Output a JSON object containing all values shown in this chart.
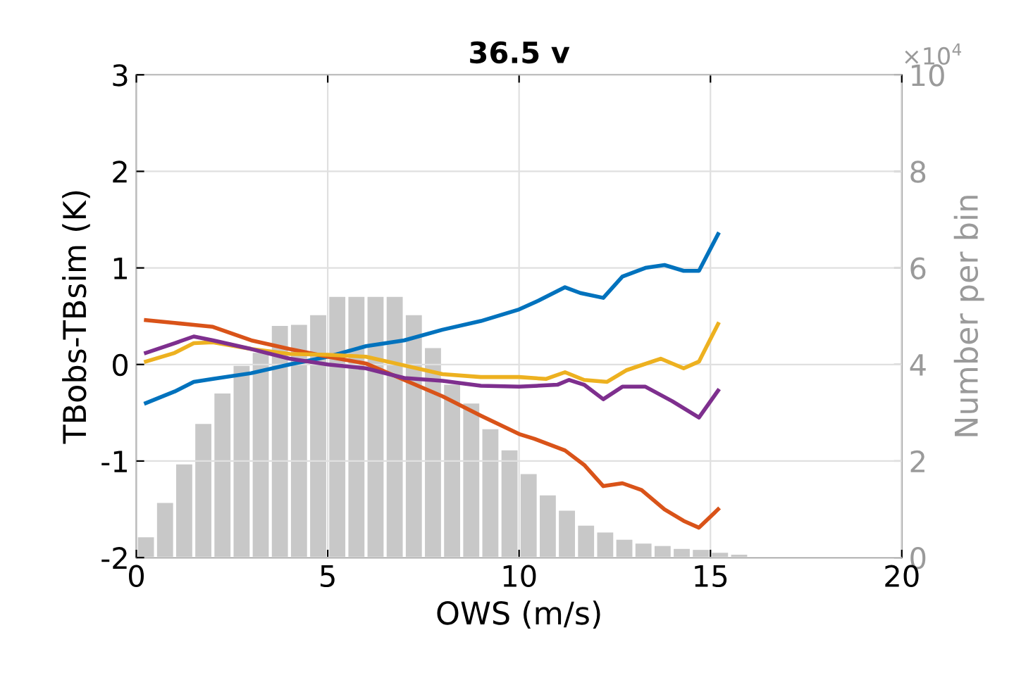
{
  "chart_data": {
    "type": "line",
    "title": "36.5 v",
    "xlabel": "OWS (m/s)",
    "ylabel": "TBobs-TBsim (K)",
    "y2label": "Number per bin",
    "xlim": [
      0,
      20
    ],
    "xticks": [
      0,
      5,
      10,
      15,
      20
    ],
    "ylim": [
      -2,
      3
    ],
    "yticks": [
      -2,
      -1,
      0,
      1,
      2,
      3
    ],
    "y2lim": [
      0,
      10
    ],
    "y2ticks": [
      0,
      2,
      4,
      6,
      8,
      10
    ],
    "annotations": [
      "×10$^{4}$"
    ],
    "grid": true,
    "series": [
      {
        "type": "histogram",
        "axis": "y2",
        "color": "#c8c8c8",
        "bins": [
          0,
          0.5,
          1,
          1.5,
          2,
          2.5,
          3,
          3.5,
          4,
          4.5,
          5,
          5.5,
          6,
          6.5,
          7,
          7.5,
          8,
          8.5,
          9,
          9.5,
          10,
          10.5,
          11,
          11.5,
          12,
          12.5,
          13,
          13.5,
          14,
          14.5,
          15,
          15.5,
          16
        ],
        "values": [
          0.42,
          1.13,
          1.93,
          2.77,
          3.4,
          3.97,
          4.24,
          4.8,
          4.82,
          5.02,
          5.4,
          5.4,
          5.4,
          5.4,
          5.02,
          4.34,
          3.58,
          3.19,
          2.66,
          2.22,
          1.73,
          1.29,
          0.97,
          0.66,
          0.52,
          0.37,
          0.29,
          0.24,
          0.18,
          0.16,
          0.1,
          0.06
        ]
      },
      {
        "color": "#0072bd",
        "x": [
          0.25,
          1,
          1.5,
          2,
          3,
          4,
          5,
          6,
          7,
          8,
          9,
          10,
          10.5,
          11.2,
          11.6,
          12.2,
          12.7,
          13.3,
          13.8,
          14.3,
          14.7,
          15.2
        ],
        "values": [
          -0.4,
          -0.28,
          -0.18,
          -0.15,
          -0.09,
          0.0,
          0.08,
          0.19,
          0.25,
          0.36,
          0.45,
          0.57,
          0.66,
          0.8,
          0.74,
          0.69,
          0.91,
          1.0,
          1.03,
          0.97,
          0.97,
          1.35
        ]
      },
      {
        "color": "#d95319",
        "x": [
          0.25,
          1,
          1.5,
          2,
          3,
          4,
          5,
          6,
          7,
          8,
          9,
          10,
          10.4,
          11.2,
          11.7,
          12.2,
          12.7,
          13.2,
          13.8,
          14.3,
          14.7,
          15.2
        ],
        "values": [
          0.46,
          0.43,
          0.41,
          0.39,
          0.25,
          0.16,
          0.08,
          0.01,
          -0.16,
          -0.33,
          -0.53,
          -0.72,
          -0.77,
          -0.89,
          -1.04,
          -1.26,
          -1.23,
          -1.3,
          -1.5,
          -1.62,
          -1.69,
          -1.5
        ]
      },
      {
        "color": "#edb120",
        "x": [
          0.25,
          1,
          1.5,
          2,
          3,
          4,
          5,
          6,
          7,
          8,
          9,
          10,
          10.7,
          11.2,
          11.7,
          12.3,
          12.8,
          13.7,
          14.3,
          14.7,
          15.2
        ],
        "values": [
          0.03,
          0.12,
          0.22,
          0.23,
          0.16,
          0.11,
          0.1,
          0.08,
          -0.01,
          -0.1,
          -0.13,
          -0.13,
          -0.15,
          -0.08,
          -0.16,
          -0.18,
          -0.06,
          0.06,
          -0.04,
          0.03,
          0.42
        ]
      },
      {
        "color": "#7e2f8e",
        "x": [
          0.25,
          1,
          1.5,
          2,
          3,
          4,
          5,
          6,
          7,
          8,
          9,
          10,
          11,
          11.3,
          11.7,
          12.2,
          12.7,
          13.3,
          14,
          14.7,
          15.2
        ],
        "values": [
          0.12,
          0.22,
          0.29,
          0.25,
          0.16,
          0.06,
          0.0,
          -0.04,
          -0.14,
          -0.17,
          -0.22,
          -0.23,
          -0.21,
          -0.16,
          -0.21,
          -0.36,
          -0.23,
          -0.23,
          -0.38,
          -0.55,
          -0.27
        ]
      }
    ]
  }
}
